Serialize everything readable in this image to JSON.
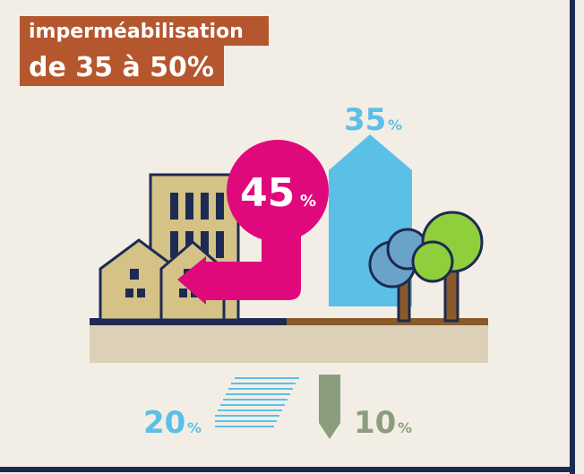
{
  "header": {
    "line1": "imperméabilisation",
    "line2": "de 35 à 50%"
  },
  "figures": {
    "runoff": {
      "value": "45",
      "unit": "%"
    },
    "evapotranspiration": {
      "value": "35",
      "unit": "%"
    },
    "shallow_infiltration": {
      "value": "20",
      "unit": "%"
    },
    "deep_infiltration": {
      "value": "10",
      "unit": "%"
    }
  }
}
